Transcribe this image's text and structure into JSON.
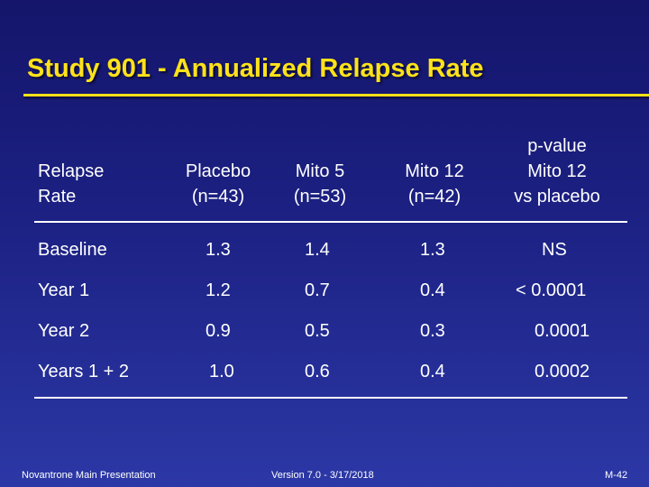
{
  "title": "Study 901 - Annualized Relapse Rate",
  "colors": {
    "title": "#ffe21a",
    "background": "#1c2183",
    "text": "#ffffff"
  },
  "table": {
    "headers": [
      {
        "line1": "",
        "line2": "Relapse",
        "line3": "Rate"
      },
      {
        "line1": "",
        "line2": "Placebo",
        "line3": "(n=43)"
      },
      {
        "line1": "",
        "line2": "Mito 5",
        "line3": "(n=53)"
      },
      {
        "line1": "",
        "line2": "Mito 12",
        "line3": "(n=42)"
      },
      {
        "line1": "p-value",
        "line2": "Mito 12",
        "line3": "vs placebo"
      }
    ],
    "rows": [
      {
        "label": "Baseline",
        "placebo": "1.3",
        "mito5": "1.4",
        "mito12": "1.3",
        "pvalue": "NS"
      },
      {
        "label": "Year 1",
        "placebo": "1.2",
        "mito5": "0.7",
        "mito12": "0.4",
        "pvalue": "< 0.0001"
      },
      {
        "label": "Year 2",
        "placebo": "0.9",
        "mito5": "0.5",
        "mito12": "0.3",
        "pvalue": "0.0001"
      },
      {
        "label": "Years 1 + 2",
        "placebo": "1.0",
        "mito5": "0.6",
        "mito12": "0.4",
        "pvalue": "0.0002"
      }
    ]
  },
  "footer": {
    "left": "Novantrone Main Presentation",
    "center": "Version 7.0 - 3/17/2018",
    "right": "M-42"
  }
}
